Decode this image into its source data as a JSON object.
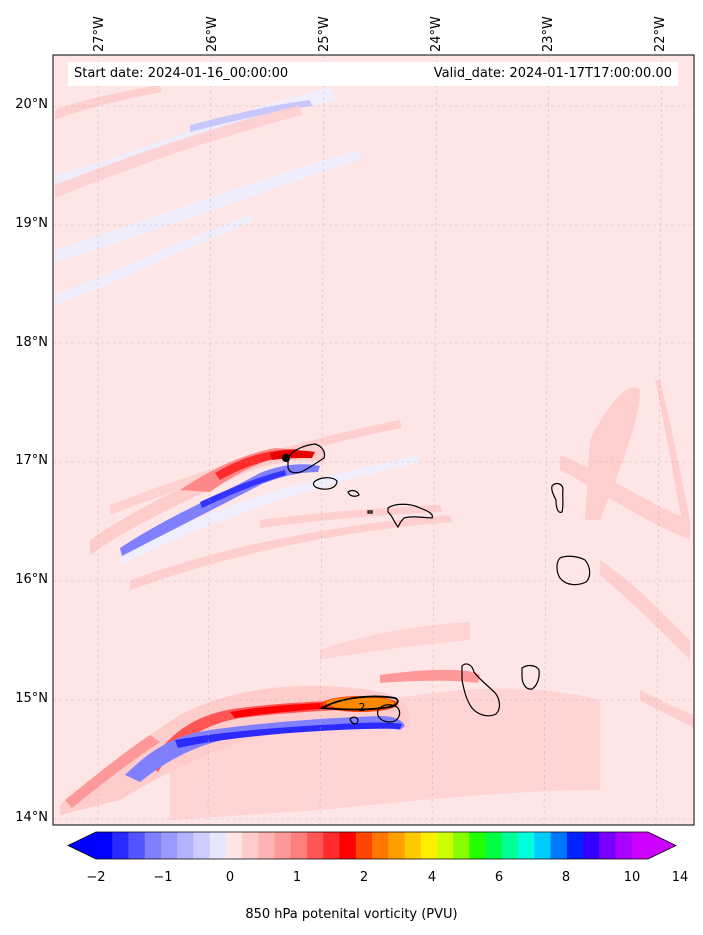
{
  "map": {
    "start_date": "Start date: 2024-01-16_00:00:00",
    "valid_date": "Valid_date: 2024-01-17T17:00:00.00",
    "lon_labels": [
      "27°W",
      "26°W",
      "25°W",
      "24°W",
      "23°W",
      "22°W"
    ],
    "lat_labels": [
      "20°N",
      "19°N",
      "18°N",
      "17°N",
      "16°N",
      "15°N",
      "14°N"
    ],
    "contour_label": "2",
    "region": "Cape Verde islands",
    "background_color": "#ffe6e6"
  },
  "colorbar": {
    "title": "850 hPa potenital vorticity (PVU)",
    "ticks": [
      "−2",
      "−1",
      "0",
      "1",
      "2",
      "4",
      "6",
      "8",
      "10",
      "14"
    ],
    "colors": [
      "#0000ff",
      "#2a2aff",
      "#5555ff",
      "#7f7fff",
      "#9999ff",
      "#b3b3ff",
      "#ccccff",
      "#e6e6ff",
      "#ffe6e6",
      "#ffcccc",
      "#ffb3b3",
      "#ff9999",
      "#ff7f7f",
      "#ff5555",
      "#ff2a2a",
      "#ff0000",
      "#ff4400",
      "#ff7700",
      "#ffa000",
      "#ffc800",
      "#ffee00",
      "#ccff00",
      "#88ff00",
      "#22ff00",
      "#00ff44",
      "#00ff99",
      "#00ffdd",
      "#00ccff",
      "#0077ff",
      "#0022ff",
      "#3300ff",
      "#7700ff",
      "#aa00ff",
      "#cc00ff"
    ]
  }
}
